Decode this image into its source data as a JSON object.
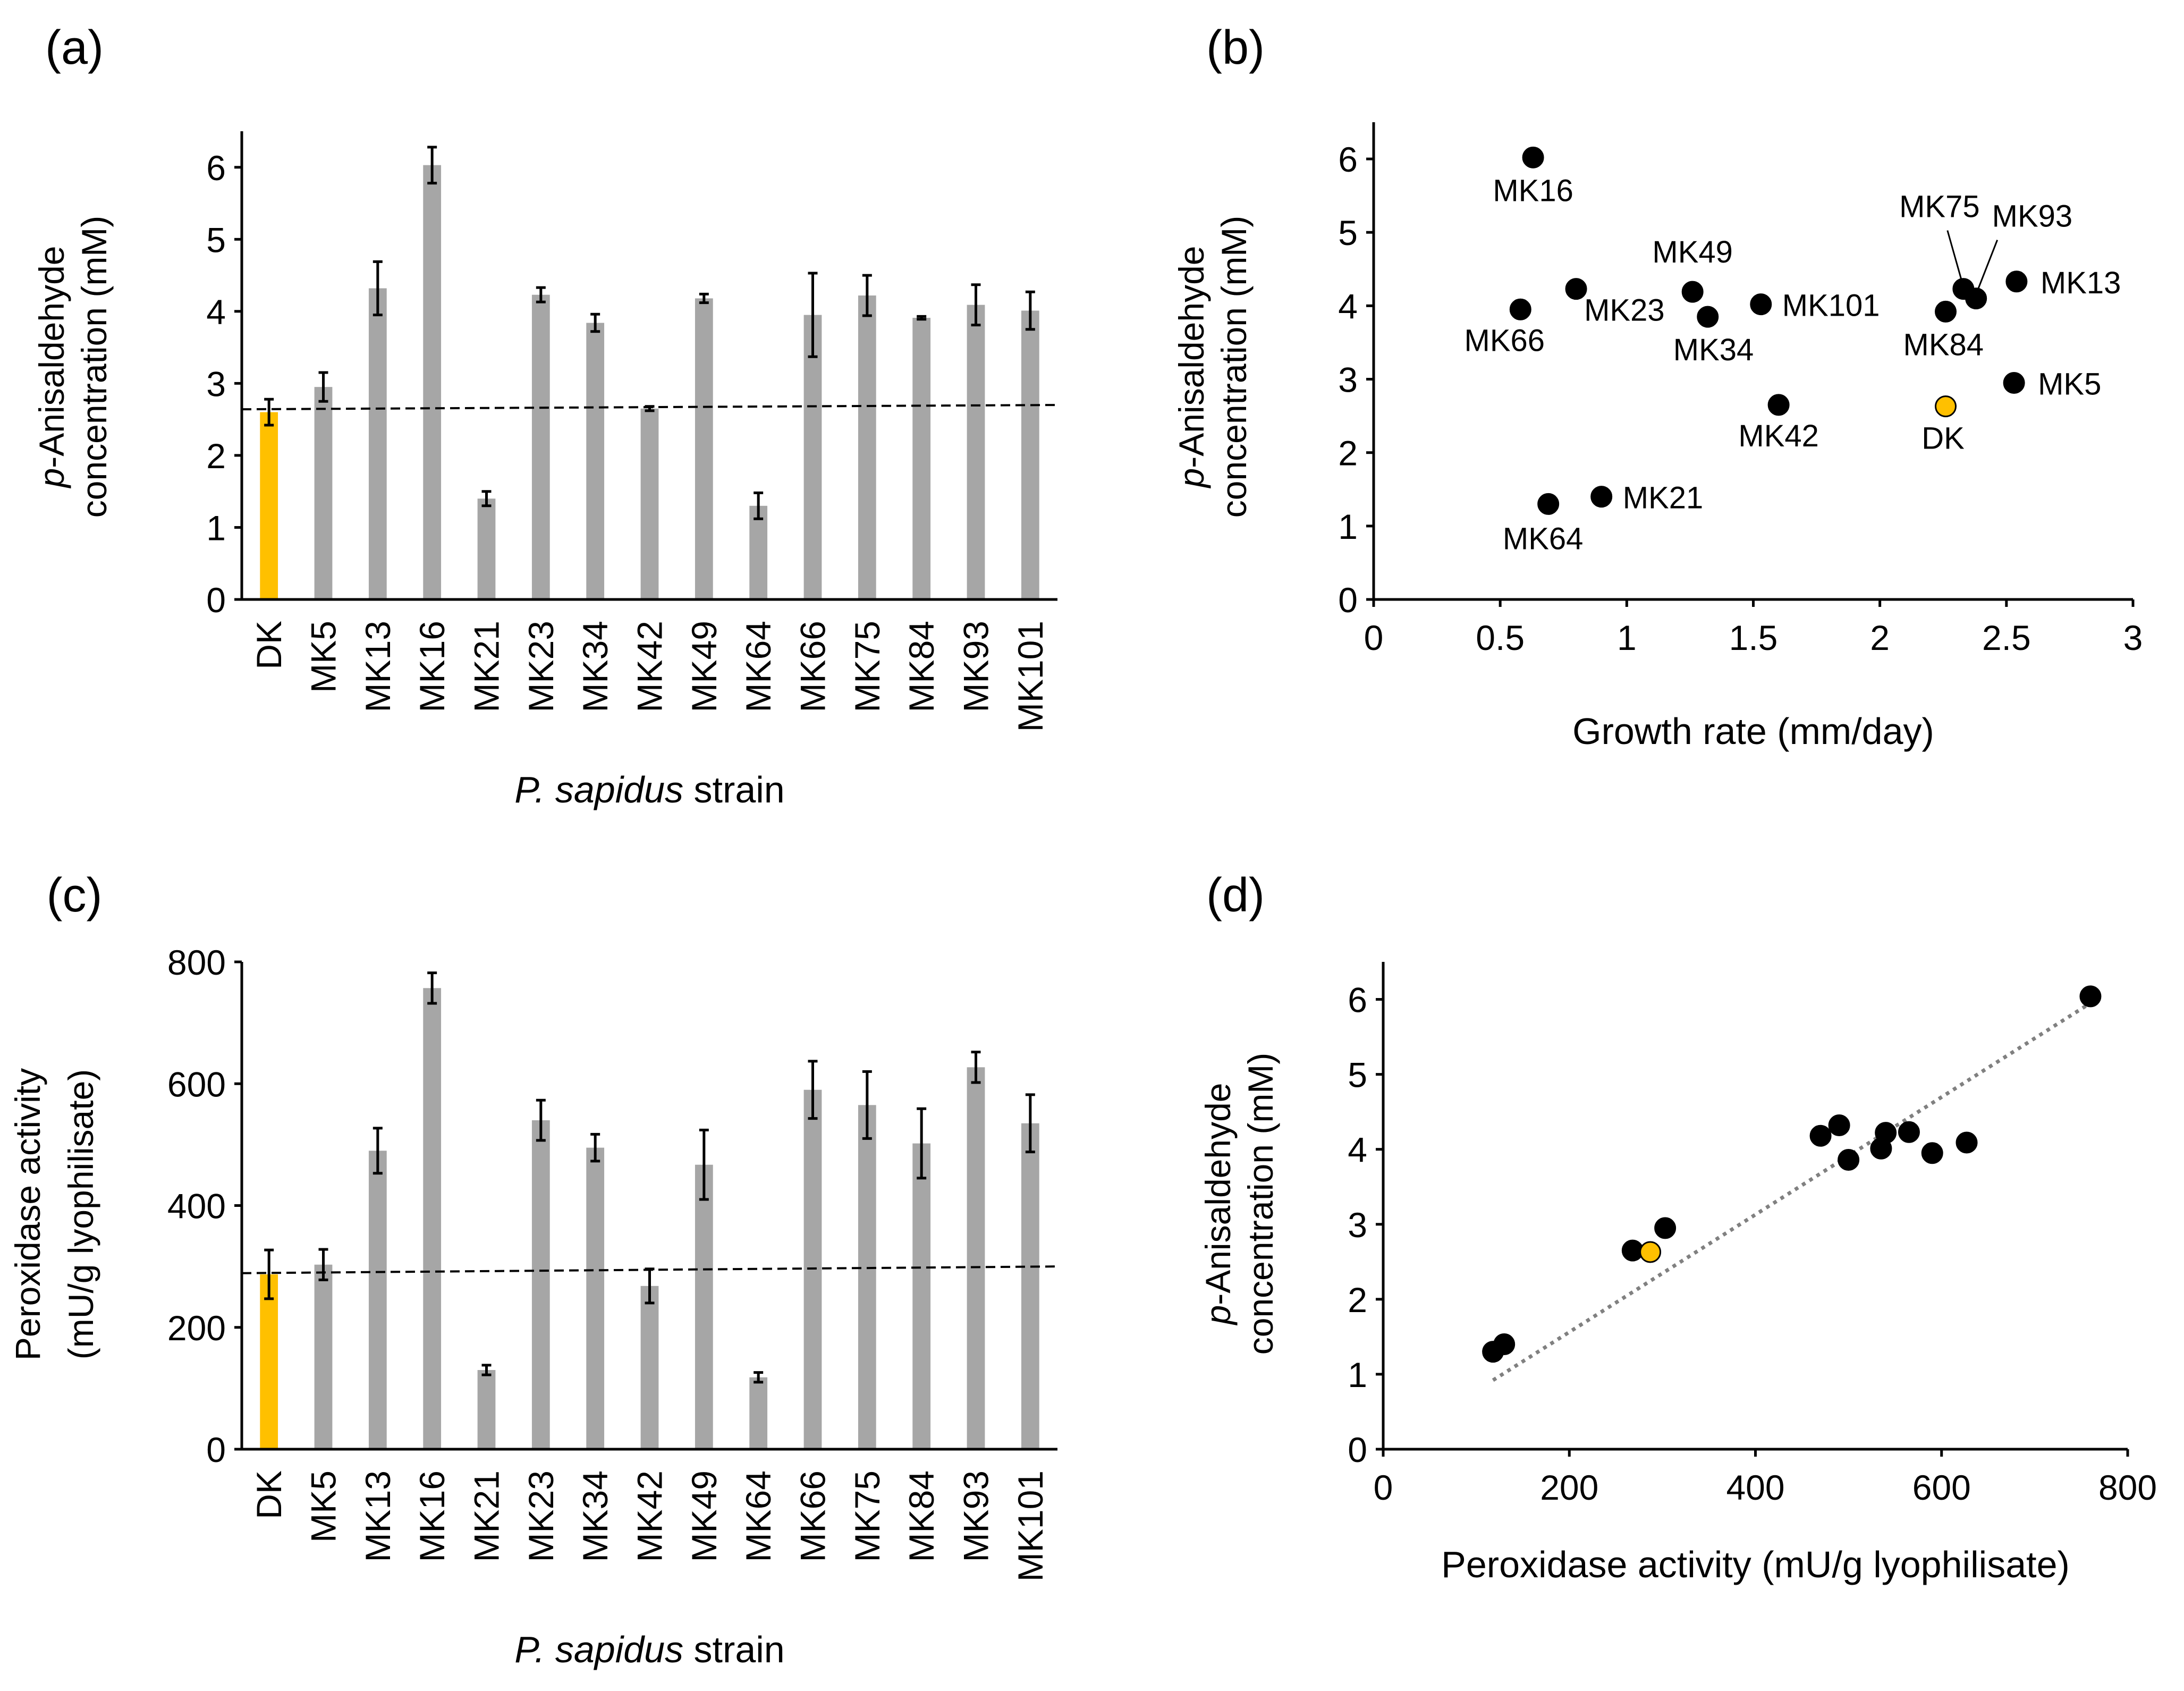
{
  "chart_data": [
    {
      "panel": "(a)",
      "type": "bar",
      "categories": [
        "DK",
        "MK5",
        "MK13",
        "MK16",
        "MK21",
        "MK23",
        "MK34",
        "MK42",
        "MK49",
        "MK64",
        "MK66",
        "MK75",
        "MK84",
        "MK93",
        "MK101"
      ],
      "values": [
        2.6,
        2.95,
        4.32,
        6.03,
        1.4,
        4.23,
        3.84,
        2.65,
        4.18,
        1.3,
        3.95,
        4.22,
        3.91,
        4.09,
        4.01
      ],
      "errors": [
        0.18,
        0.2,
        0.37,
        0.25,
        0.1,
        0.1,
        0.12,
        0.03,
        0.06,
        0.18,
        0.58,
        0.28,
        0.02,
        0.28,
        0.26
      ],
      "highlight_category": "DK",
      "reference_line": {
        "x": [
          0,
          15
        ],
        "y": [
          2.64,
          2.7
        ],
        "style": "dashed"
      },
      "title": "",
      "xlabel_italic": "P. sapidus",
      "xlabel_rest": " strain",
      "ylabel_italic": "p",
      "ylabel_line1": "-Anisaldehyde",
      "ylabel_line2": "concentration (mM)",
      "ylim": [
        0,
        6.5
      ],
      "yticks": [
        0,
        1,
        2,
        3,
        4,
        5,
        6
      ]
    },
    {
      "panel": "(b)",
      "type": "scatter",
      "points": [
        {
          "label": "MK16",
          "x": 0.63,
          "y": 6.02
        },
        {
          "label": "MK66",
          "x": 0.58,
          "y": 3.95
        },
        {
          "label": "MK23",
          "x": 0.8,
          "y": 4.23
        },
        {
          "label": "MK49",
          "x": 1.26,
          "y": 4.19
        },
        {
          "label": "MK34",
          "x": 1.32,
          "y": 3.85
        },
        {
          "label": "MK101",
          "x": 1.53,
          "y": 4.02
        },
        {
          "label": "MK42",
          "x": 1.6,
          "y": 2.65
        },
        {
          "label": "MK64",
          "x": 0.69,
          "y": 1.3
        },
        {
          "label": "MK21",
          "x": 0.9,
          "y": 1.4
        },
        {
          "label": "MK75",
          "x": 2.33,
          "y": 4.23
        },
        {
          "label": "MK93",
          "x": 2.38,
          "y": 4.1
        },
        {
          "label": "MK84",
          "x": 2.26,
          "y": 3.92
        },
        {
          "label": "MK13",
          "x": 2.54,
          "y": 4.33
        },
        {
          "label": "MK5",
          "x": 2.53,
          "y": 2.95
        },
        {
          "label": "DK",
          "x": 2.26,
          "y": 2.63,
          "highlight": true
        }
      ],
      "title": "",
      "xlabel": "Growth rate (mm/day)",
      "ylabel_italic": "p",
      "ylabel_line1": "-Anisaldehyde",
      "ylabel_line2": "concentration (mM)",
      "xlim": [
        0,
        3
      ],
      "ylim": [
        0,
        6.5
      ],
      "xticks": [
        "0",
        "0.5",
        "1",
        "1.5",
        "2",
        "2.5",
        "3"
      ],
      "yticks": [
        0,
        1,
        2,
        3,
        4,
        5,
        6
      ]
    },
    {
      "panel": "(c)",
      "type": "bar",
      "categories": [
        "DK",
        "MK5",
        "MK13",
        "MK16",
        "MK21",
        "MK23",
        "MK34",
        "MK42",
        "MK49",
        "MK64",
        "MK66",
        "MK75",
        "MK84",
        "MK93",
        "MK101"
      ],
      "values": [
        287,
        303,
        490,
        757,
        130,
        540,
        495,
        268,
        467,
        118,
        590,
        565,
        502,
        627,
        535
      ],
      "errors": [
        40,
        25,
        37,
        25,
        8,
        33,
        22,
        28,
        57,
        8,
        47,
        55,
        57,
        25,
        47
      ],
      "highlight_category": "DK",
      "reference_line": {
        "x": [
          0,
          15
        ],
        "y": [
          289,
          300
        ],
        "style": "dashed"
      },
      "title": "",
      "xlabel_italic": "P. sapidus",
      "xlabel_rest": " strain",
      "ylabel_line1": "Peroxidase activity",
      "ylabel_line2": "(mU/g lyophilisate)",
      "ylim": [
        0,
        800
      ],
      "yticks": [
        0,
        200,
        400,
        600,
        800
      ]
    },
    {
      "panel": "(d)",
      "type": "scatter",
      "points": [
        {
          "x": 760,
          "y": 6.04
        },
        {
          "x": 470,
          "y": 4.18
        },
        {
          "x": 490,
          "y": 4.32
        },
        {
          "x": 500,
          "y": 3.86
        },
        {
          "x": 540,
          "y": 4.22
        },
        {
          "x": 565,
          "y": 4.23
        },
        {
          "x": 535,
          "y": 4.01
        },
        {
          "x": 590,
          "y": 3.95
        },
        {
          "x": 627,
          "y": 4.09
        },
        {
          "x": 268,
          "y": 2.65
        },
        {
          "x": 303,
          "y": 2.95
        },
        {
          "x": 287,
          "y": 2.63,
          "highlight": true
        },
        {
          "x": 118,
          "y": 1.3
        },
        {
          "x": 130,
          "y": 1.4
        }
      ],
      "trendline": {
        "x": [
          118,
          760
        ],
        "y": [
          0.92,
          5.95
        ],
        "style": "dotted"
      },
      "title": "",
      "xlabel": "Peroxidase activity (mU/g lyophilisate)",
      "ylabel_italic": "p",
      "ylabel_line1": "-Anisaldehyde",
      "ylabel_line2": "concentration (mM)",
      "xlim": [
        0,
        800
      ],
      "ylim": [
        0,
        6.5
      ],
      "xticks": [
        0,
        200,
        400,
        600,
        800
      ],
      "yticks": [
        0,
        1,
        2,
        3,
        4,
        5,
        6
      ]
    }
  ],
  "colors": {
    "bar": "#a6a6a6",
    "highlight": "#ffc000",
    "point": "#000000",
    "trendline": "#808080",
    "axis": "#000000"
  }
}
